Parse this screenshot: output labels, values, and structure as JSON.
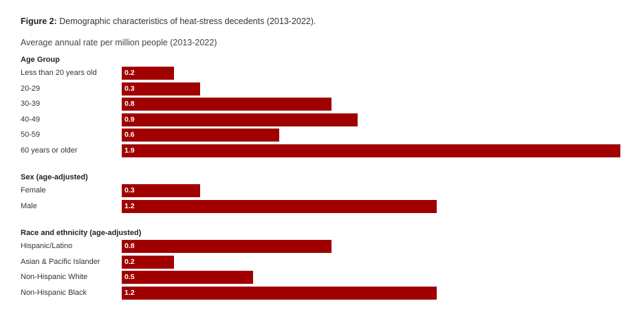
{
  "figure": {
    "prefix": "Figure 2:",
    "title": "Demographic characteristics of heat-stress decedents (2013-2022).",
    "subtitle": "Average annual rate per million people (2013-2022)"
  },
  "colors": {
    "bar": "#a00000",
    "bar_label": "#ffffff"
  },
  "chart_data": {
    "type": "bar",
    "orientation": "horizontal",
    "xlim": [
      0,
      1.9
    ],
    "grid": false,
    "legend": "none",
    "groups": [
      {
        "name": "Age Group",
        "categories": [
          "Less than 20 years old",
          "20-29",
          "30-39",
          "40-49",
          "50-59",
          "60 years or older"
        ],
        "values": [
          0.2,
          0.3,
          0.8,
          0.9,
          0.6,
          1.9
        ]
      },
      {
        "name": "Sex (age-adjusted)",
        "categories": [
          "Female",
          "Male"
        ],
        "values": [
          0.3,
          1.2
        ]
      },
      {
        "name": "Race and ethnicity (age-adjusted)",
        "categories": [
          "Hispanic/Latino",
          "Asian & Pacific Islander",
          "Non-Hispanic White",
          "Non-Hispanic Black"
        ],
        "values": [
          0.8,
          0.2,
          0.5,
          1.2
        ]
      }
    ]
  }
}
